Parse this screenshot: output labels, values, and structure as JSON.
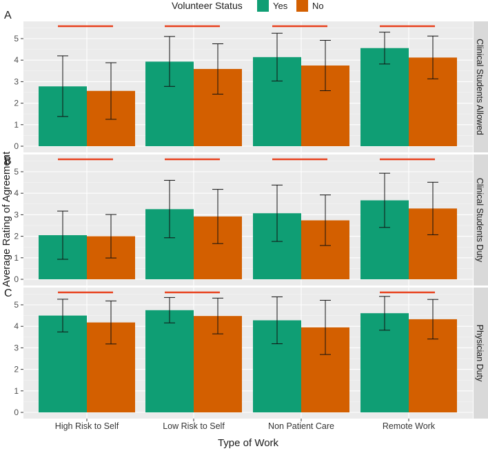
{
  "chart_data": {
    "type": "bar",
    "xlabel": "Type of Work",
    "ylabel": "Average Rating of Agreement",
    "ylim": [
      0,
      5.6
    ],
    "yticks": [
      0,
      1,
      2,
      3,
      4,
      5
    ],
    "grid": true,
    "categories": [
      "High Risk to Self",
      "Low Risk to Self",
      "Non Patient Care",
      "Remote Work"
    ],
    "legend": {
      "title": "Volunteer Status",
      "position": "top",
      "entries": [
        {
          "name": "Yes",
          "color": "#0f9e74"
        },
        {
          "name": "No",
          "color": "#d35f00"
        }
      ]
    },
    "significance_color": "#e8401c",
    "panels": [
      {
        "letter": "A",
        "strip": "Clinical Students Allowed",
        "series": [
          {
            "name": "Yes",
            "values": [
              2.78,
              3.93,
              4.14,
              4.56
            ],
            "error_low": [
              1.38,
              2.78,
              3.03,
              3.82
            ],
            "error_high": [
              4.2,
              5.1,
              5.25,
              5.3
            ]
          },
          {
            "name": "No",
            "values": [
              2.57,
              3.59,
              3.75,
              4.12
            ],
            "error_low": [
              1.25,
              2.42,
              2.58,
              3.13
            ],
            "error_high": [
              3.88,
              4.76,
              4.92,
              5.12
            ]
          }
        ],
        "significant": [
          true,
          true,
          true,
          true
        ]
      },
      {
        "letter": "B",
        "strip": "Clinical Students Duty",
        "series": [
          {
            "name": "Yes",
            "values": [
              2.05,
              3.26,
              3.07,
              3.67
            ],
            "error_low": [
              0.93,
              1.93,
              1.76,
              2.41
            ],
            "error_high": [
              3.17,
              4.6,
              4.38,
              4.93
            ]
          },
          {
            "name": "No",
            "values": [
              2.0,
              2.92,
              2.74,
              3.29
            ],
            "error_low": [
              0.99,
              1.66,
              1.57,
              2.07
            ],
            "error_high": [
              3.01,
              4.18,
              3.92,
              4.51
            ]
          }
        ],
        "significant": [
          true,
          true,
          true,
          true
        ]
      },
      {
        "letter": "C",
        "strip": "Physician Duty",
        "series": [
          {
            "name": "Yes",
            "values": [
              4.5,
              4.75,
              4.28,
              4.61
            ],
            "error_low": [
              3.74,
              4.16,
              3.19,
              3.82
            ],
            "error_high": [
              5.26,
              5.34,
              5.37,
              5.39
            ]
          },
          {
            "name": "No",
            "values": [
              4.18,
              4.48,
              3.95,
              4.33
            ],
            "error_low": [
              3.18,
              3.65,
              2.69,
              3.41
            ],
            "error_high": [
              5.18,
              5.31,
              5.21,
              5.25
            ]
          }
        ],
        "significant": [
          true,
          true,
          false,
          true
        ]
      }
    ]
  }
}
